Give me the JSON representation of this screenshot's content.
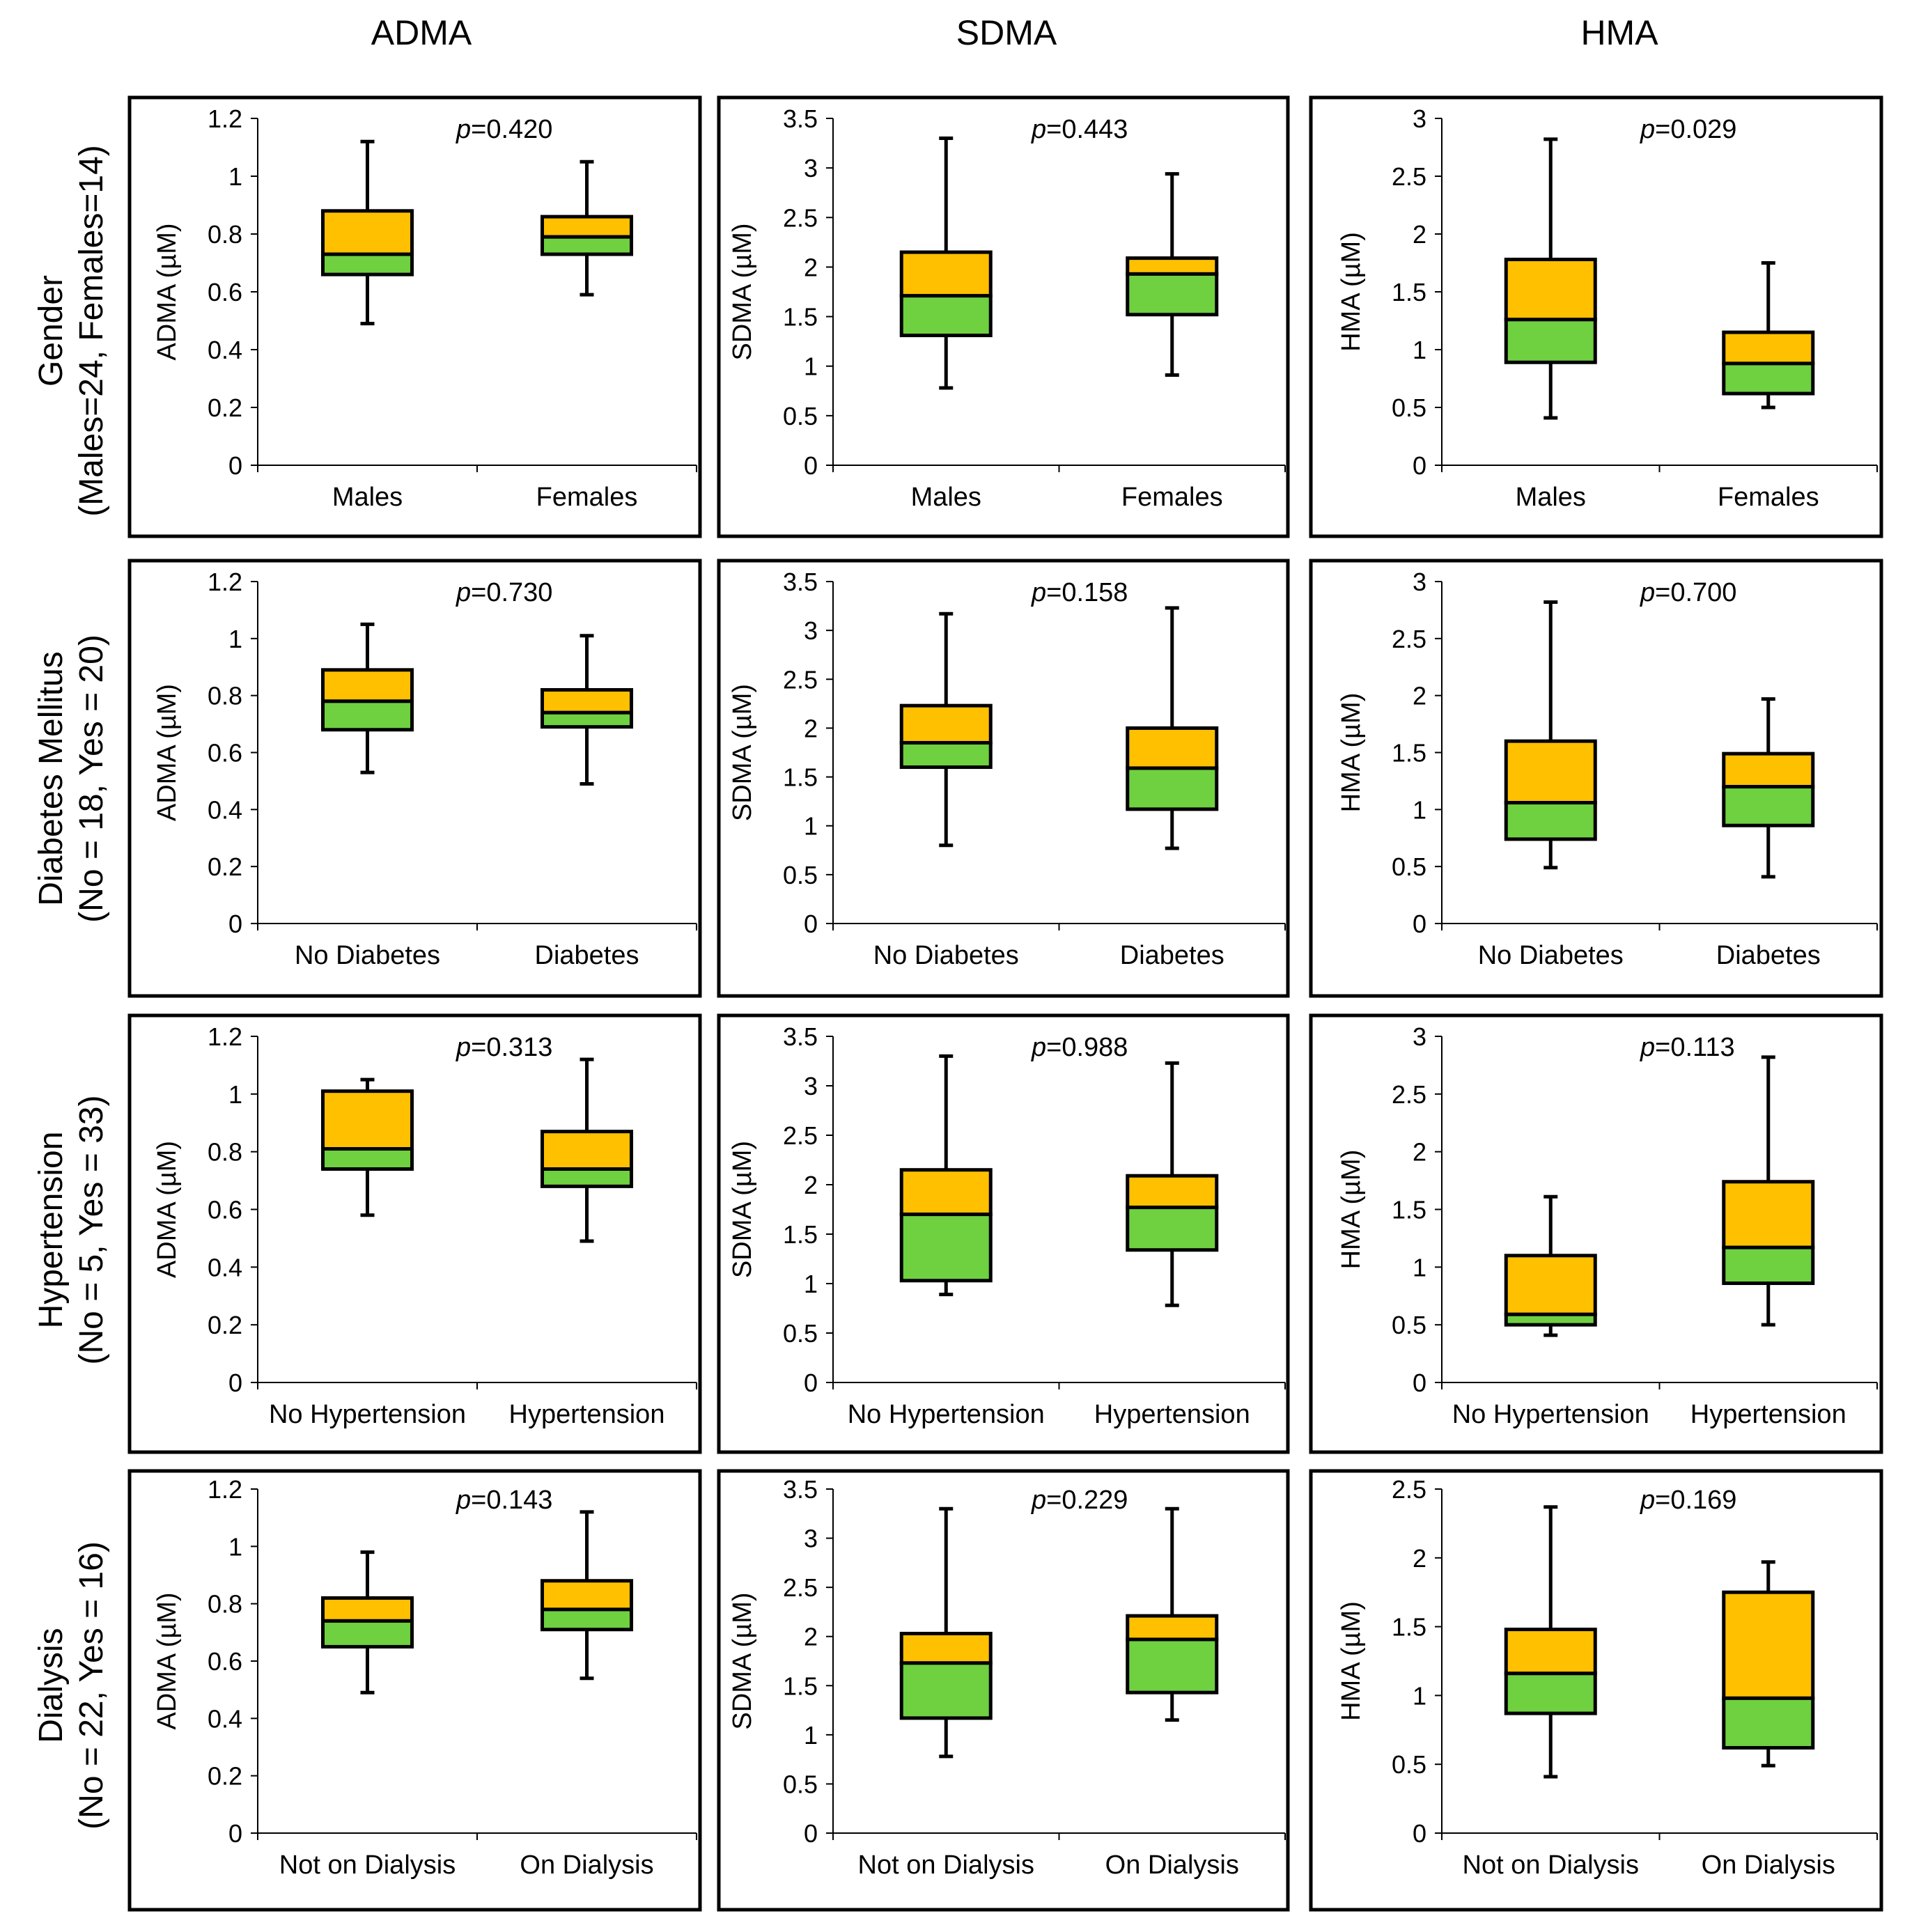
{
  "column_headers": [
    "ADMA",
    "SDMA",
    "HMA"
  ],
  "row_headers": [
    {
      "line1": "Gender",
      "line2": "(Males=24, Females=14)"
    },
    {
      "line1": "Diabetes Mellitus",
      "line2": "(No = 18, Yes = 20)"
    },
    {
      "line1": "Hypertension",
      "line2": "(No = 5, Yes = 33)"
    },
    {
      "line1": "Dialysis",
      "line2": "(No = 22, Yes = 16)"
    }
  ],
  "colors": {
    "upper_box": "#FFC000",
    "lower_box": "#6FD040",
    "stroke": "#000000"
  },
  "chart_data": [
    {
      "type": "boxplot",
      "row": 0,
      "col": 0,
      "ylabel": "ADMA (µM)",
      "ylim": [
        0,
        1.2
      ],
      "yticks": [
        "0",
        "0.2",
        "0.4",
        "0.6",
        "0.8",
        "1",
        "1.2"
      ],
      "p_prefix": "p",
      "p_value": "=0.420",
      "categories": [
        "Males",
        "Females"
      ],
      "boxes": [
        {
          "min": 0.49,
          "q1": 0.66,
          "median": 0.73,
          "q3": 0.88,
          "max": 1.12
        },
        {
          "min": 0.59,
          "q1": 0.73,
          "median": 0.79,
          "q3": 0.86,
          "max": 1.05
        }
      ]
    },
    {
      "type": "boxplot",
      "row": 0,
      "col": 1,
      "ylabel": "SDMA (µM)",
      "ylim": [
        0,
        3.5
      ],
      "yticks": [
        "0",
        "0.5",
        "1",
        "1.5",
        "2",
        "2.5",
        "3",
        "3.5"
      ],
      "p_prefix": "p",
      "p_value": "=0.443",
      "categories": [
        "Males",
        "Females"
      ],
      "boxes": [
        {
          "min": 0.78,
          "q1": 1.31,
          "median": 1.71,
          "q3": 2.15,
          "max": 3.3
        },
        {
          "min": 0.91,
          "q1": 1.52,
          "median": 1.93,
          "q3": 2.09,
          "max": 2.94
        }
      ]
    },
    {
      "type": "boxplot",
      "row": 0,
      "col": 2,
      "ylabel": "HMA (µM)",
      "ylim": [
        0,
        3
      ],
      "yticks": [
        "0",
        "0.5",
        "1",
        "1.5",
        "2",
        "2.5",
        "3"
      ],
      "p_prefix": "p",
      "p_value": "=0.029",
      "categories": [
        "Males",
        "Females"
      ],
      "boxes": [
        {
          "min": 0.41,
          "q1": 0.89,
          "median": 1.26,
          "q3": 1.78,
          "max": 2.82
        },
        {
          "min": 0.5,
          "q1": 0.62,
          "median": 0.88,
          "q3": 1.15,
          "max": 1.75
        }
      ]
    },
    {
      "type": "boxplot",
      "row": 1,
      "col": 0,
      "ylabel": "ADMA (µM)",
      "ylim": [
        0,
        1.2
      ],
      "yticks": [
        "0",
        "0.2",
        "0.4",
        "0.6",
        "0.8",
        "1",
        "1.2"
      ],
      "p_prefix": "p",
      "p_value": "=0.730",
      "categories": [
        "No Diabetes",
        "Diabetes"
      ],
      "boxes": [
        {
          "min": 0.53,
          "q1": 0.68,
          "median": 0.78,
          "q3": 0.89,
          "max": 1.05
        },
        {
          "min": 0.49,
          "q1": 0.69,
          "median": 0.74,
          "q3": 0.82,
          "max": 1.01
        }
      ]
    },
    {
      "type": "boxplot",
      "row": 1,
      "col": 1,
      "ylabel": "SDMA (µM)",
      "ylim": [
        0,
        3.5
      ],
      "yticks": [
        "0",
        "0.5",
        "1",
        "1.5",
        "2",
        "2.5",
        "3",
        "3.5"
      ],
      "p_prefix": "p",
      "p_value": "=0.158",
      "categories": [
        "No Diabetes",
        "Diabetes"
      ],
      "boxes": [
        {
          "min": 0.8,
          "q1": 1.6,
          "median": 1.85,
          "q3": 2.23,
          "max": 3.17
        },
        {
          "min": 0.77,
          "q1": 1.17,
          "median": 1.59,
          "q3": 2.0,
          "max": 3.23
        }
      ]
    },
    {
      "type": "boxplot",
      "row": 1,
      "col": 2,
      "ylabel": "HMA (µM)",
      "ylim": [
        0,
        3
      ],
      "yticks": [
        "0",
        "0.5",
        "1",
        "1.5",
        "2",
        "2.5",
        "3"
      ],
      "p_prefix": "p",
      "p_value": "=0.700",
      "categories": [
        "No Diabetes",
        "Diabetes"
      ],
      "boxes": [
        {
          "min": 0.49,
          "q1": 0.74,
          "median": 1.06,
          "q3": 1.6,
          "max": 2.82
        },
        {
          "min": 0.41,
          "q1": 0.86,
          "median": 1.2,
          "q3": 1.49,
          "max": 1.97
        }
      ]
    },
    {
      "type": "boxplot",
      "row": 2,
      "col": 0,
      "ylabel": "ADMA (µM)",
      "ylim": [
        0,
        1.2
      ],
      "yticks": [
        "0",
        "0.2",
        "0.4",
        "0.6",
        "0.8",
        "1",
        "1.2"
      ],
      "p_prefix": "p",
      "p_value": "=0.313",
      "categories": [
        "No Hypertension",
        "Hypertension"
      ],
      "boxes": [
        {
          "min": 0.58,
          "q1": 0.74,
          "median": 0.81,
          "q3": 1.01,
          "max": 1.05
        },
        {
          "min": 0.49,
          "q1": 0.68,
          "median": 0.74,
          "q3": 0.87,
          "max": 1.12
        }
      ]
    },
    {
      "type": "boxplot",
      "row": 2,
      "col": 1,
      "ylabel": "SDMA (µM)",
      "ylim": [
        0,
        3.5
      ],
      "yticks": [
        "0",
        "0.5",
        "1",
        "1.5",
        "2",
        "2.5",
        "3",
        "3.5"
      ],
      "p_prefix": "p",
      "p_value": "=0.988",
      "categories": [
        "No Hypertension",
        "Hypertension"
      ],
      "boxes": [
        {
          "min": 0.89,
          "q1": 1.03,
          "median": 1.7,
          "q3": 2.15,
          "max": 3.3
        },
        {
          "min": 0.78,
          "q1": 1.34,
          "median": 1.77,
          "q3": 2.09,
          "max": 3.23
        }
      ]
    },
    {
      "type": "boxplot",
      "row": 2,
      "col": 2,
      "ylabel": "HMA (µM)",
      "ylim": [
        0,
        3
      ],
      "yticks": [
        "0",
        "0.5",
        "1",
        "1.5",
        "2",
        "2.5",
        "3"
      ],
      "p_prefix": "p",
      "p_value": "=0.113",
      "categories": [
        "No Hypertension",
        "Hypertension"
      ],
      "boxes": [
        {
          "min": 0.41,
          "q1": 0.5,
          "median": 0.59,
          "q3": 1.1,
          "max": 1.61
        },
        {
          "min": 0.5,
          "q1": 0.86,
          "median": 1.17,
          "q3": 1.74,
          "max": 2.82
        }
      ]
    },
    {
      "type": "boxplot",
      "row": 3,
      "col": 0,
      "ylabel": "ADMA (µM)",
      "ylim": [
        0,
        1.2
      ],
      "yticks": [
        "0",
        "0.2",
        "0.4",
        "0.6",
        "0.8",
        "1",
        "1.2"
      ],
      "p_prefix": "p",
      "p_value": "=0.143",
      "categories": [
        "Not on Dialysis",
        "On Dialysis"
      ],
      "boxes": [
        {
          "min": 0.49,
          "q1": 0.65,
          "median": 0.74,
          "q3": 0.82,
          "max": 0.98
        },
        {
          "min": 0.54,
          "q1": 0.71,
          "median": 0.78,
          "q3": 0.88,
          "max": 1.12
        }
      ]
    },
    {
      "type": "boxplot",
      "row": 3,
      "col": 1,
      "ylabel": "SDMA (µM)",
      "ylim": [
        0,
        3.5
      ],
      "yticks": [
        "0",
        "0.5",
        "1",
        "1.5",
        "2",
        "2.5",
        "3",
        "3.5"
      ],
      "p_prefix": "p",
      "p_value": "=0.229",
      "categories": [
        "Not on Dialysis",
        "On Dialysis"
      ],
      "boxes": [
        {
          "min": 0.78,
          "q1": 1.17,
          "median": 1.73,
          "q3": 2.03,
          "max": 3.3
        },
        {
          "min": 1.15,
          "q1": 1.43,
          "median": 1.97,
          "q3": 2.21,
          "max": 3.3
        }
      ]
    },
    {
      "type": "boxplot",
      "row": 3,
      "col": 2,
      "ylabel": "HMA (µM)",
      "ylim": [
        0,
        2.5
      ],
      "yticks": [
        "0",
        "0.5",
        "1",
        "1.5",
        "2",
        "2.5"
      ],
      "p_prefix": "p",
      "p_value": "=0.169",
      "categories": [
        "Not on Dialysis",
        "On Dialysis"
      ],
      "boxes": [
        {
          "min": 0.41,
          "q1": 0.87,
          "median": 1.16,
          "q3": 1.48,
          "max": 2.37
        },
        {
          "min": 0.49,
          "q1": 0.62,
          "median": 0.98,
          "q3": 1.75,
          "max": 1.97
        }
      ]
    }
  ]
}
